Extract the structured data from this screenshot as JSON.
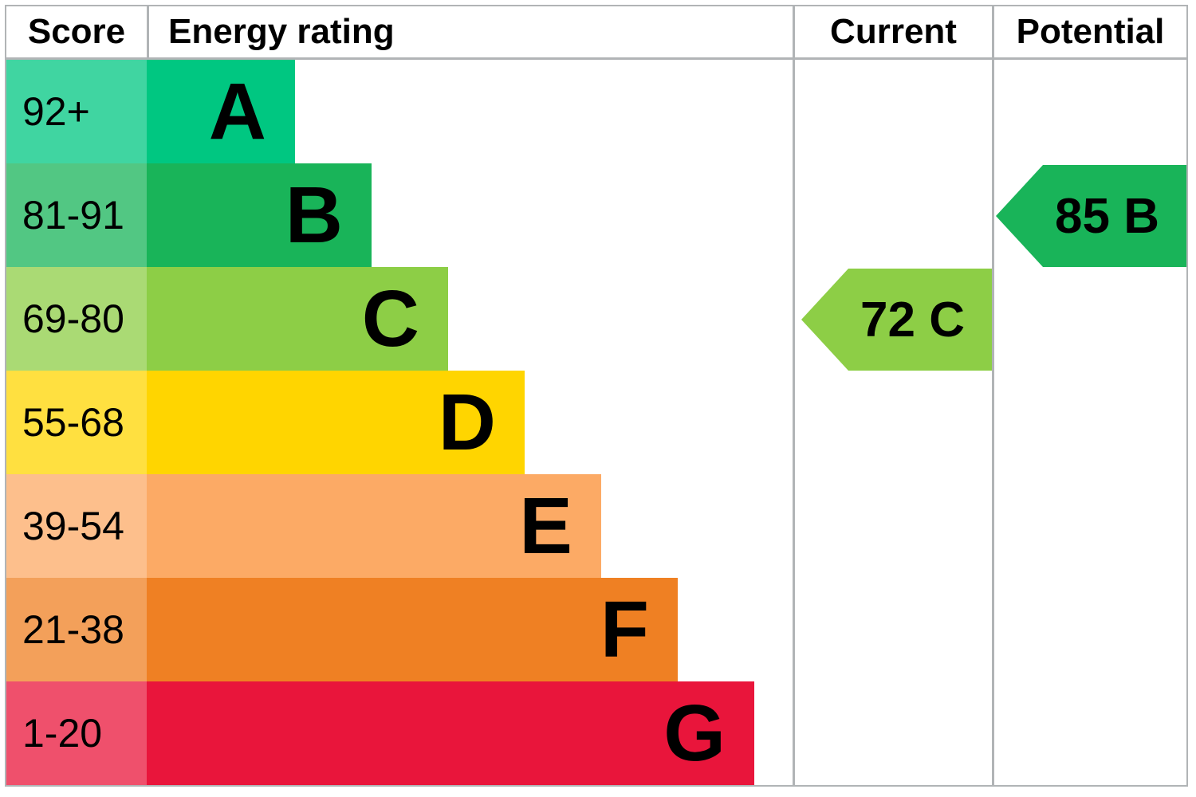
{
  "header": {
    "score": "Score",
    "energy_rating": "Energy rating",
    "current": "Current",
    "potential": "Potential"
  },
  "chart_data": {
    "type": "bar",
    "title": "EPC energy efficiency rating chart",
    "columns": [
      "Score",
      "Energy rating",
      "Current",
      "Potential"
    ],
    "bands": [
      {
        "letter": "A",
        "score": "92+",
        "color": "#00c781",
        "score_color": "#40d5a1"
      },
      {
        "letter": "B",
        "score": "81-91",
        "color": "#19b459",
        "score_color": "#52c783"
      },
      {
        "letter": "C",
        "score": "69-80",
        "color": "#8dce46",
        "score_color": "#aada74"
      },
      {
        "letter": "D",
        "score": "55-68",
        "color": "#ffd500",
        "score_color": "#ffe040"
      },
      {
        "letter": "E",
        "score": "39-54",
        "color": "#fcaa65",
        "score_color": "#fdbf8c"
      },
      {
        "letter": "F",
        "score": "21-38",
        "color": "#ef8023",
        "score_color": "#f3a05a"
      },
      {
        "letter": "G",
        "score": "1-20",
        "color": "#e9153b",
        "score_color": "#ef506c"
      }
    ],
    "current": {
      "label": "72 C",
      "value": 72,
      "band": "C",
      "color": "#8dce46"
    },
    "potential": {
      "label": "85 B",
      "value": 85,
      "band": "B",
      "color": "#19b459"
    },
    "border_color": "#b1b4b6",
    "text_color": "#000000",
    "legend_position": "none",
    "grid": false
  }
}
